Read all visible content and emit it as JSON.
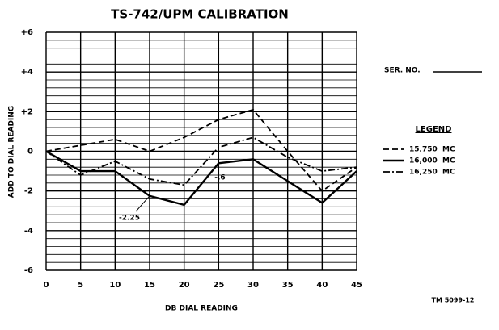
{
  "chart_data": {
    "type": "line",
    "title": "TS-742/UPM CALIBRATION",
    "x_label": "DB DIAL READING",
    "y_label": "ADD TO DIAL READING",
    "x": [
      0,
      5,
      10,
      15,
      20,
      25,
      30,
      35,
      40,
      45
    ],
    "series": [
      {
        "name": "15,750  MC",
        "color": "#000000",
        "dash": "dashed",
        "values": [
          0,
          0.3,
          0.6,
          0,
          0.7,
          1.6,
          2.1,
          0,
          -2.0,
          -0.8
        ]
      },
      {
        "name": "16,000  MC",
        "color": "#000000",
        "dash": "solid",
        "values": [
          0,
          -1.0,
          -1.0,
          -2.25,
          -2.7,
          -0.6,
          -0.4,
          -1.5,
          -2.6,
          -1.0
        ]
      },
      {
        "name": "16,250  MC",
        "color": "#000000",
        "dash": "dashdot",
        "values": [
          0,
          -1.2,
          -0.5,
          -1.4,
          -1.7,
          0.2,
          0.7,
          -0.3,
          -1.0,
          -0.8
        ]
      }
    ],
    "annotations": [
      "-2.25",
      "-.6"
    ],
    "legend_title": "LEGEND",
    "serial_label": "SER. NO.",
    "footer": "TM 5099-12",
    "xlim": [
      0,
      45
    ],
    "xticks": [
      0,
      5,
      10,
      15,
      20,
      25,
      30,
      35,
      40,
      45
    ],
    "ylim": [
      -6,
      6
    ],
    "yticks": [
      {
        "value": -6,
        "label": "-6"
      },
      -4,
      -2,
      0,
      {
        "value": 2,
        "label": "+2"
      },
      {
        "value": 4,
        "label": "+4"
      },
      {
        "value": 6,
        "label": "+6"
      }
    ],
    "grid": true,
    "legend": "right"
  }
}
